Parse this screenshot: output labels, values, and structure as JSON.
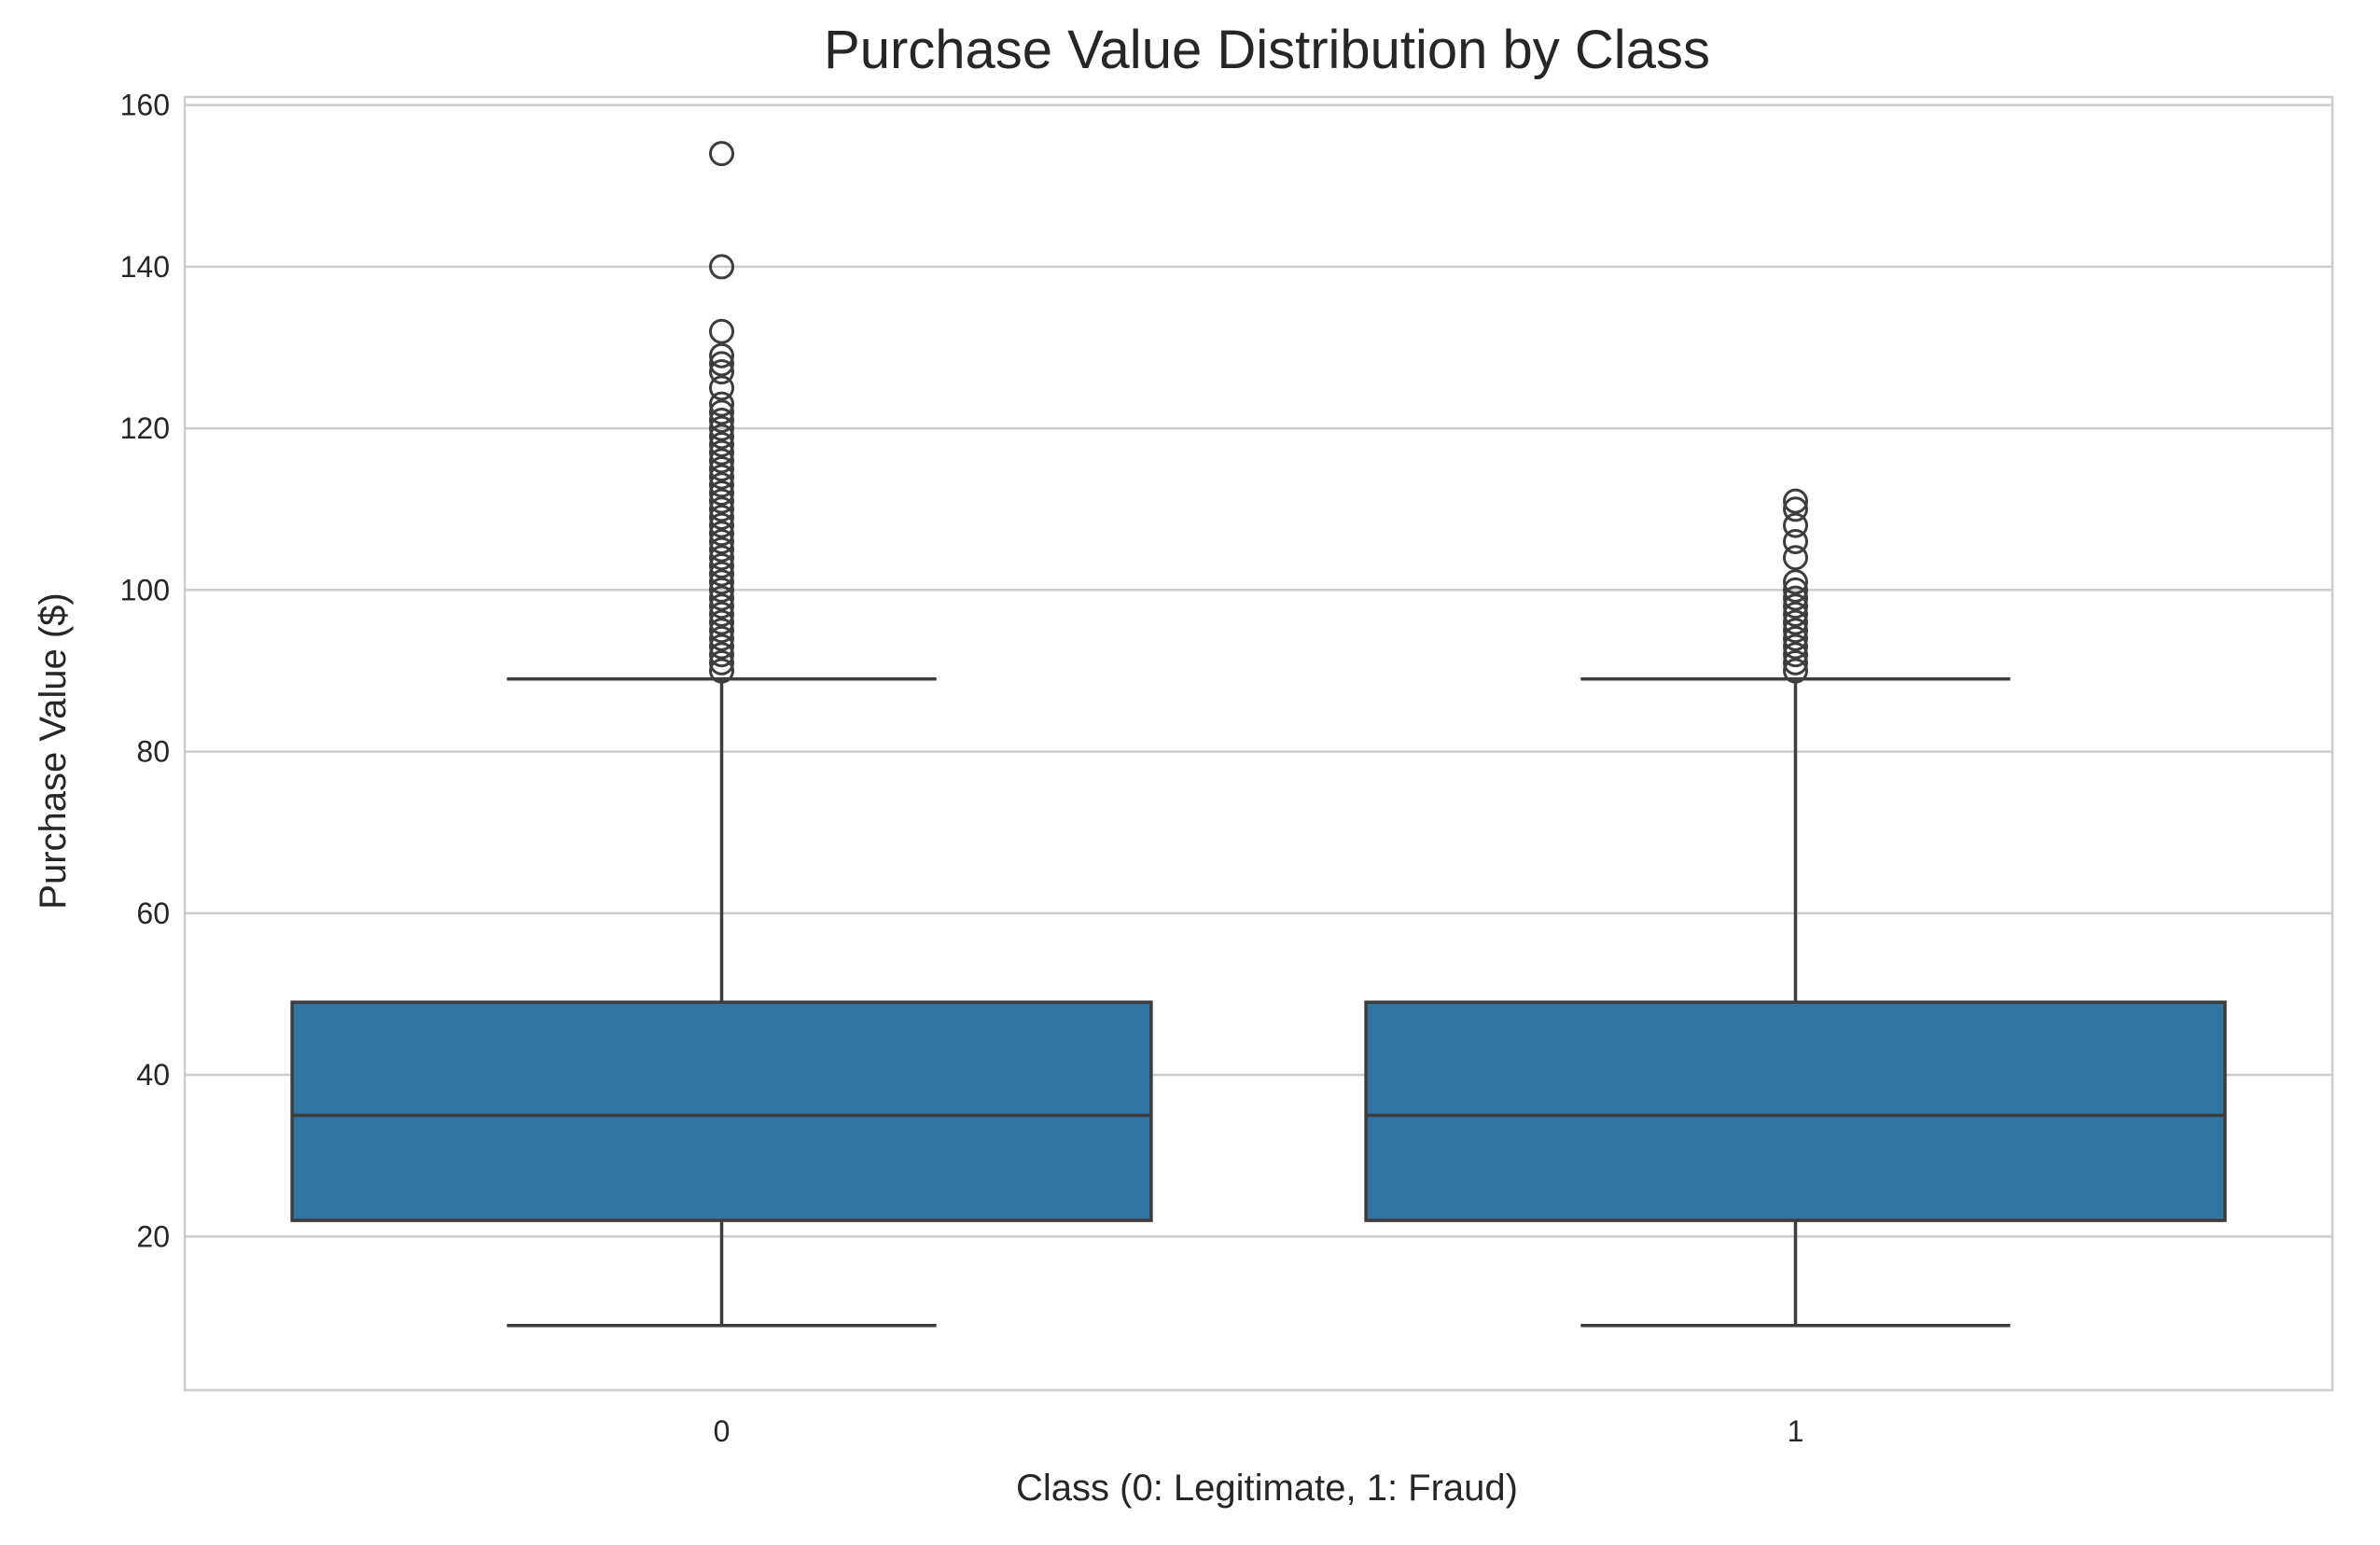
{
  "colors": {
    "box_fill": "#3274a1",
    "line": "#3d3d3d",
    "grid": "#cccccc",
    "frame": "#cccccc",
    "text": "#262626"
  },
  "chart_data": {
    "type": "box",
    "title": "Purchase Value Distribution by Class",
    "xlabel": "Class (0: Legitimate, 1: Fraud)",
    "ylabel": "Purchase Value ($)",
    "ylim": [
      1,
      161
    ],
    "yticks": [
      20,
      40,
      60,
      80,
      100,
      120,
      140,
      160
    ],
    "ytick_labels": [
      "20",
      "40",
      "60",
      "80",
      "100",
      "120",
      "140",
      "160"
    ],
    "grid": "horizontal",
    "categories": [
      "0",
      "1"
    ],
    "boxes": [
      {
        "category": "0",
        "whisker_low": 9,
        "q1": 22,
        "median": 35,
        "q3": 49,
        "whisker_high": 89,
        "outliers": [
          90,
          91,
          92,
          93,
          94,
          95,
          96,
          97,
          98,
          99,
          100,
          101,
          102,
          103,
          104,
          105,
          106,
          107,
          108,
          109,
          110,
          111,
          112,
          113,
          114,
          115,
          116,
          117,
          118,
          119,
          120,
          121,
          122,
          123,
          125,
          127,
          128,
          129,
          132,
          140,
          154
        ]
      },
      {
        "category": "1",
        "whisker_low": 9,
        "q1": 22,
        "median": 35,
        "q3": 49,
        "whisker_high": 89,
        "outliers": [
          90,
          91,
          92,
          93,
          94,
          95,
          96,
          97,
          98,
          99,
          100,
          101,
          104,
          106,
          108,
          110,
          111
        ]
      }
    ]
  }
}
